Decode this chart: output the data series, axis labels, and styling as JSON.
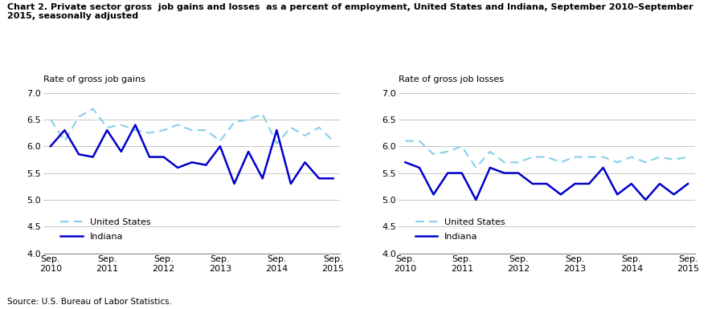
{
  "title": "Chart 2. Private sector gross  job gains and losses  as a percent of employment, United States and Indiana, September 2010–September\n2015, seasonally adjusted",
  "left_ylabel": "Rate of gross job gains",
  "right_ylabel": "Rate of gross job losses",
  "source": "Source: U.S. Bureau of Labor Statistics.",
  "x_labels": [
    "Sep.\n2010",
    "Sep.\n2011",
    "Sep.\n2012",
    "Sep.\n2013",
    "Sep.\n2014",
    "Sep.\n2015"
  ],
  "x_ticks": [
    0,
    4,
    8,
    12,
    16,
    20
  ],
  "ylim": [
    4.0,
    7.0
  ],
  "yticks": [
    4.0,
    4.5,
    5.0,
    5.5,
    6.0,
    6.5,
    7.0
  ],
  "gains_us": [
    6.5,
    6.1,
    6.55,
    6.7,
    6.35,
    6.4,
    6.3,
    6.25,
    6.3,
    6.4,
    6.3,
    6.3,
    6.1,
    6.45,
    6.5,
    6.6,
    6.05,
    6.35,
    6.2,
    6.35,
    6.1
  ],
  "gains_indiana": [
    6.0,
    6.3,
    5.85,
    5.8,
    6.3,
    5.9,
    6.4,
    5.8,
    5.8,
    5.6,
    5.7,
    5.65,
    6.0,
    5.3,
    5.9,
    5.4,
    6.3,
    5.3,
    5.7,
    5.4,
    5.4
  ],
  "losses_us": [
    6.1,
    6.1,
    5.85,
    5.9,
    6.0,
    5.6,
    5.9,
    5.7,
    5.7,
    5.8,
    5.8,
    5.7,
    5.8,
    5.8,
    5.8,
    5.7,
    5.8,
    5.7,
    5.8,
    5.75,
    5.8
  ],
  "losses_indiana": [
    5.7,
    5.6,
    5.1,
    5.5,
    5.5,
    5.0,
    5.6,
    5.5,
    5.5,
    5.3,
    5.3,
    5.1,
    5.3,
    5.3,
    5.6,
    5.1,
    5.3,
    5.0,
    5.3,
    5.1,
    5.3
  ],
  "us_color": "#87CEEB",
  "indiana_color": "#0000CD",
  "us_label": "United States",
  "indiana_label": "Indiana",
  "fig_width": 9.01,
  "fig_height": 3.85,
  "dpi": 100
}
